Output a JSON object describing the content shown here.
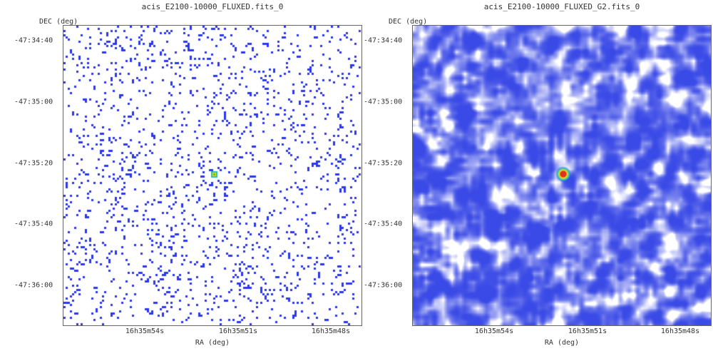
{
  "panels": [
    {
      "title": "acis_E2100-10000_FLUXED.fits_0",
      "dec_axis_label": "DEC (deg)",
      "ra_axis_label": "RA (deg)",
      "yticks": [
        "-47:34:40",
        "-47:35:00",
        "-47:35:20",
        "-47:35:40",
        "-47:36:00"
      ],
      "xticks": [
        "16h35m54s",
        "16h35m51s",
        "16h35m48s"
      ],
      "image_style": "sparse-counts"
    },
    {
      "title": "acis_E2100-10000_FLUXED_G2.fits_0",
      "dec_axis_label": "DEC (deg)",
      "ra_axis_label": "RA (deg)",
      "yticks": [
        "-47:34:40",
        "-47:35:00",
        "-47:35:20",
        "-47:35:40",
        "-47:36:00"
      ],
      "xticks": [
        "16h35m54s",
        "16h35m51s",
        "16h35m48s"
      ],
      "image_style": "smoothed"
    }
  ],
  "colors": {
    "pixel": "#2a37ef",
    "smooth_dark": "#3a4ae6",
    "smooth_light": "#ffffff",
    "source_core": "#e03020",
    "source_ring": "#f0e020",
    "source_halo": "#20c0c0"
  }
}
